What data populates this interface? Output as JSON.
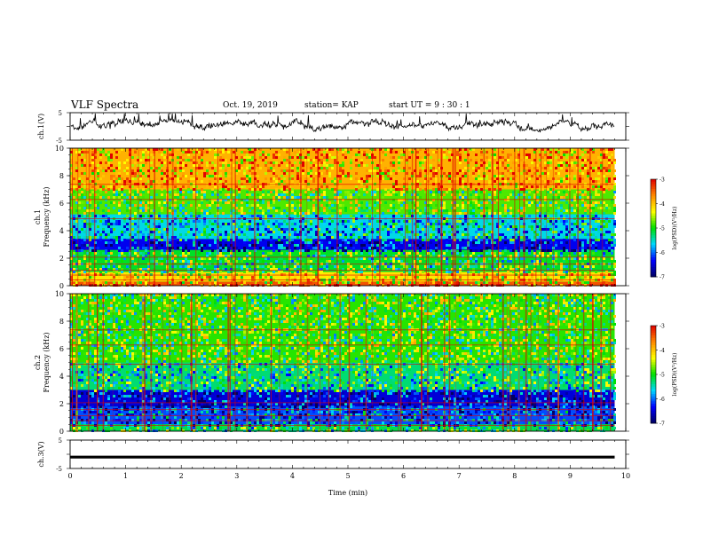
{
  "header": {
    "title": "VLF Spectra",
    "date": "Oct. 19, 2019",
    "station": "station= KAP",
    "start": "start  UT  =    9  : 30 : 1"
  },
  "colorbar": {
    "label": "log(PSD)(V²/Hz)",
    "ticks": [
      "-3",
      "-4",
      "-5",
      "-6",
      "-7"
    ],
    "colors": [
      "#e00000",
      "#ff8800",
      "#ffff00",
      "#00e000",
      "#00d8ff",
      "#0000ff",
      "#000060"
    ]
  },
  "chart_data": [
    {
      "type": "line",
      "name": "ch1-waveform",
      "ylabel": "ch.1(V)",
      "ylim": [
        -5,
        5
      ],
      "yticks": [
        "5",
        "-5"
      ],
      "xlim": [
        0,
        10
      ],
      "trace_color": "#000000",
      "approx_level": 0.3,
      "approx_swing": 1.5
    },
    {
      "type": "heatmap",
      "name": "ch1-spectrogram",
      "ylabel": "ch.1",
      "ylabel2": "Frequency (kHz)",
      "ylim": [
        0,
        10
      ],
      "yticks": [
        "0",
        "2",
        "4",
        "6",
        "8",
        "10"
      ],
      "xlim": [
        0,
        10
      ],
      "x_data_end": 9.8,
      "z_label": "log(PSD)(V²/Hz)",
      "zlim": [
        -7,
        -3
      ],
      "bands": [
        {
          "f0": 0.0,
          "f1": 0.3,
          "level": -3.4
        },
        {
          "f0": 0.3,
          "f1": 1.0,
          "level": -4.2
        },
        {
          "f0": 1.0,
          "f1": 2.6,
          "level": -5.1
        },
        {
          "f0": 2.6,
          "f1": 3.4,
          "level": -6.4
        },
        {
          "f0": 3.4,
          "f1": 5.2,
          "level": -5.6
        },
        {
          "f0": 5.2,
          "f1": 7.0,
          "level": -4.8
        },
        {
          "f0": 7.0,
          "f1": 10.0,
          "level": -3.9
        }
      ]
    },
    {
      "type": "heatmap",
      "name": "ch2-spectrogram",
      "ylabel": "ch.2",
      "ylabel2": "Frequency (kHz)",
      "ylim": [
        0,
        10
      ],
      "yticks": [
        "0",
        "2",
        "4",
        "6",
        "8",
        "10"
      ],
      "xlim": [
        0,
        10
      ],
      "x_data_end": 9.8,
      "z_label": "log(PSD)(V²/Hz)",
      "zlim": [
        -7,
        -3
      ],
      "bands": [
        {
          "f0": 0.0,
          "f1": 0.5,
          "level": -5.2
        },
        {
          "f0": 0.5,
          "f1": 1.8,
          "level": -6.1
        },
        {
          "f0": 1.8,
          "f1": 3.0,
          "level": -6.5
        },
        {
          "f0": 3.0,
          "f1": 5.0,
          "level": -5.3
        },
        {
          "f0": 5.0,
          "f1": 10.0,
          "level": -4.9
        }
      ]
    },
    {
      "type": "line",
      "name": "ch3-waveform",
      "ylabel": "ch.3(V)",
      "xlabel": "Time (min)",
      "ylim": [
        -5,
        5
      ],
      "yticks": [
        "5",
        "-5"
      ],
      "xlim": [
        0,
        10
      ],
      "xticks": [
        "0",
        "1",
        "2",
        "3",
        "4",
        "5",
        "6",
        "7",
        "8",
        "9",
        "10"
      ],
      "trace_color": "#000000",
      "constant_value": 0.0,
      "x_data_end": 9.8
    }
  ]
}
